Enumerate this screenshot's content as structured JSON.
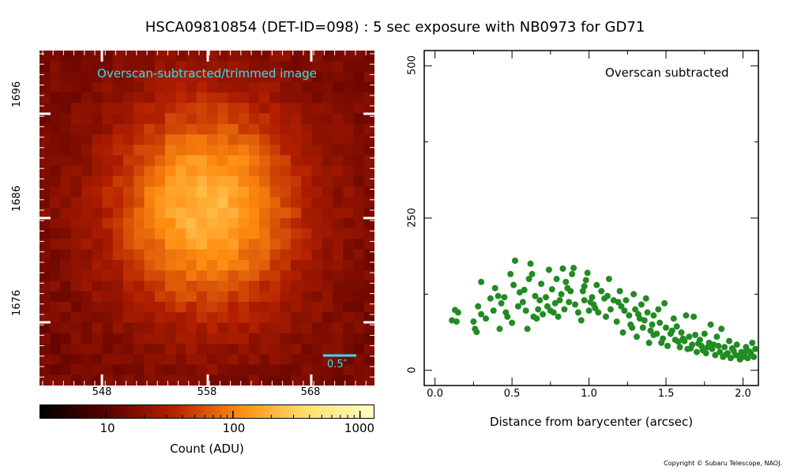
{
  "title": "HSCA09810854 (DET-ID=098) :  5 sec exposure with NB0973 for GD71",
  "image_panel": {
    "caption": "Overscan-subtracted/trimmed image",
    "scale_bar_label": "0.5″",
    "x_ticks": [
      "548",
      "558",
      "568"
    ],
    "y_ticks": [
      "1696",
      "1686",
      "1676"
    ]
  },
  "colorbar": {
    "tick_labels": [
      "10",
      "100",
      "1000"
    ],
    "label": "Count (ADU)",
    "colormap": [
      "#000000",
      "#5a0000",
      "#b52000",
      "#ff8c10",
      "#ffe070",
      "#ffffc0"
    ]
  },
  "plot": {
    "note": "Overscan subtracted",
    "xlabel": "Distance from barycenter (arcsec)",
    "point_color": "#228b22"
  },
  "chart_data": {
    "type": "scatter",
    "x_ticks": [
      "0.0",
      "0.5",
      "1.0",
      "1.5",
      "2.0"
    ],
    "y_ticks": [
      "0",
      "250",
      "500"
    ],
    "xlim": [
      -0.07,
      2.1
    ],
    "ylim": [
      -25,
      525
    ],
    "points": [
      [
        0.11,
        82
      ],
      [
        0.13,
        99
      ],
      [
        0.15,
        95
      ],
      [
        0.14,
        80
      ],
      [
        0.25,
        80
      ],
      [
        0.26,
        68
      ],
      [
        0.27,
        63
      ],
      [
        0.28,
        105
      ],
      [
        0.3,
        92
      ],
      [
        0.3,
        145
      ],
      [
        0.33,
        85
      ],
      [
        0.36,
        118
      ],
      [
        0.38,
        98
      ],
      [
        0.39,
        135
      ],
      [
        0.42,
        68
      ],
      [
        0.43,
        110
      ],
      [
        0.45,
        120
      ],
      [
        0.47,
        88
      ],
      [
        0.49,
        158
      ],
      [
        0.5,
        78
      ],
      [
        0.51,
        140
      ],
      [
        0.52,
        180
      ],
      [
        0.55,
        128
      ],
      [
        0.57,
        112
      ],
      [
        0.59,
        98
      ],
      [
        0.6,
        68
      ],
      [
        0.61,
        150
      ],
      [
        0.62,
        175
      ],
      [
        0.63,
        158
      ],
      [
        0.64,
        88
      ],
      [
        0.65,
        122
      ],
      [
        0.67,
        100
      ],
      [
        0.69,
        142
      ],
      [
        0.7,
        92
      ],
      [
        0.72,
        120
      ],
      [
        0.74,
        165
      ],
      [
        0.75,
        98
      ],
      [
        0.76,
        133
      ],
      [
        0.78,
        110
      ],
      [
        0.79,
        150
      ],
      [
        0.8,
        88
      ],
      [
        0.82,
        125
      ],
      [
        0.83,
        167
      ],
      [
        0.84,
        100
      ],
      [
        0.85,
        145
      ],
      [
        0.87,
        112
      ],
      [
        0.88,
        130
      ],
      [
        0.89,
        158
      ],
      [
        0.9,
        168
      ],
      [
        0.91,
        108
      ],
      [
        0.93,
        95
      ],
      [
        0.95,
        82
      ],
      [
        0.96,
        130
      ],
      [
        0.97,
        115
      ],
      [
        0.98,
        148
      ],
      [
        0.99,
        160
      ],
      [
        1.0,
        98
      ],
      [
        1.02,
        120
      ],
      [
        1.03,
        108
      ],
      [
        1.05,
        140
      ],
      [
        1.06,
        95
      ],
      [
        1.08,
        130
      ],
      [
        1.1,
        118
      ],
      [
        1.11,
        88
      ],
      [
        1.13,
        150
      ],
      [
        1.14,
        100
      ],
      [
        1.16,
        115
      ],
      [
        1.18,
        80
      ],
      [
        1.2,
        130
      ],
      [
        1.21,
        105
      ],
      [
        1.22,
        62
      ],
      [
        1.24,
        115
      ],
      [
        1.26,
        90
      ],
      [
        1.27,
        75
      ],
      [
        1.29,
        125
      ],
      [
        1.3,
        100
      ],
      [
        1.31,
        55
      ],
      [
        1.33,
        85
      ],
      [
        1.34,
        108
      ],
      [
        1.35,
        70
      ],
      [
        1.37,
        118
      ],
      [
        1.38,
        95
      ],
      [
        1.39,
        45
      ],
      [
        1.41,
        75
      ],
      [
        1.42,
        90
      ],
      [
        1.44,
        60
      ],
      [
        1.45,
        100
      ],
      [
        1.46,
        78
      ],
      [
        1.48,
        52
      ],
      [
        1.49,
        110
      ],
      [
        1.5,
        70
      ],
      [
        1.51,
        40
      ],
      [
        1.53,
        60
      ],
      [
        1.55,
        85
      ],
      [
        1.56,
        50
      ],
      [
        1.57,
        72
      ],
      [
        1.59,
        38
      ],
      [
        1.6,
        62
      ],
      [
        1.62,
        48
      ],
      [
        1.63,
        90
      ],
      [
        1.64,
        35
      ],
      [
        1.65,
        55
      ],
      [
        1.67,
        42
      ],
      [
        1.68,
        88
      ],
      [
        1.7,
        30
      ],
      [
        1.72,
        50
      ],
      [
        1.73,
        40
      ],
      [
        1.75,
        60
      ],
      [
        1.76,
        28
      ],
      [
        1.78,
        45
      ],
      [
        1.79,
        75
      ],
      [
        1.8,
        35
      ],
      [
        1.82,
        25
      ],
      [
        1.83,
        55
      ],
      [
        1.84,
        40
      ],
      [
        1.86,
        68
      ],
      [
        1.87,
        22
      ],
      [
        1.88,
        38
      ],
      [
        1.9,
        28
      ],
      [
        1.91,
        48
      ],
      [
        1.92,
        20
      ],
      [
        1.94,
        32
      ],
      [
        1.95,
        25
      ],
      [
        1.96,
        42
      ],
      [
        1.98,
        18
      ],
      [
        1.99,
        30
      ],
      [
        2.0,
        22
      ],
      [
        2.02,
        38
      ],
      [
        2.03,
        20
      ],
      [
        2.05,
        28
      ],
      [
        2.06,
        45
      ],
      [
        2.07,
        22
      ],
      [
        2.08,
        35
      ],
      [
        1.42,
        58
      ],
      [
        1.47,
        45
      ],
      [
        1.54,
        65
      ],
      [
        1.61,
        52
      ],
      [
        1.66,
        36
      ],
      [
        1.71,
        44
      ],
      [
        1.74,
        33
      ],
      [
        1.81,
        42
      ],
      [
        1.85,
        30
      ],
      [
        1.89,
        26
      ],
      [
        1.93,
        36
      ],
      [
        1.97,
        24
      ],
      [
        2.01,
        29
      ],
      [
        2.04,
        31
      ],
      [
        1.58,
        47
      ],
      [
        1.69,
        58
      ],
      [
        1.77,
        38
      ],
      [
        1.12,
        122
      ],
      [
        1.19,
        112
      ],
      [
        1.23,
        98
      ],
      [
        1.28,
        70
      ],
      [
        1.32,
        92
      ],
      [
        1.36,
        82
      ],
      [
        1.4,
        65
      ],
      [
        0.97,
        138
      ],
      [
        1.01,
        112
      ],
      [
        1.04,
        102
      ],
      [
        0.86,
        135
      ],
      [
        0.81,
        115
      ],
      [
        0.77,
        95
      ],
      [
        0.73,
        105
      ],
      [
        0.68,
        115
      ],
      [
        0.66,
        85
      ],
      [
        0.58,
        132
      ],
      [
        0.54,
        105
      ],
      [
        0.46,
        95
      ],
      [
        0.41,
        122
      ]
    ]
  }
}
